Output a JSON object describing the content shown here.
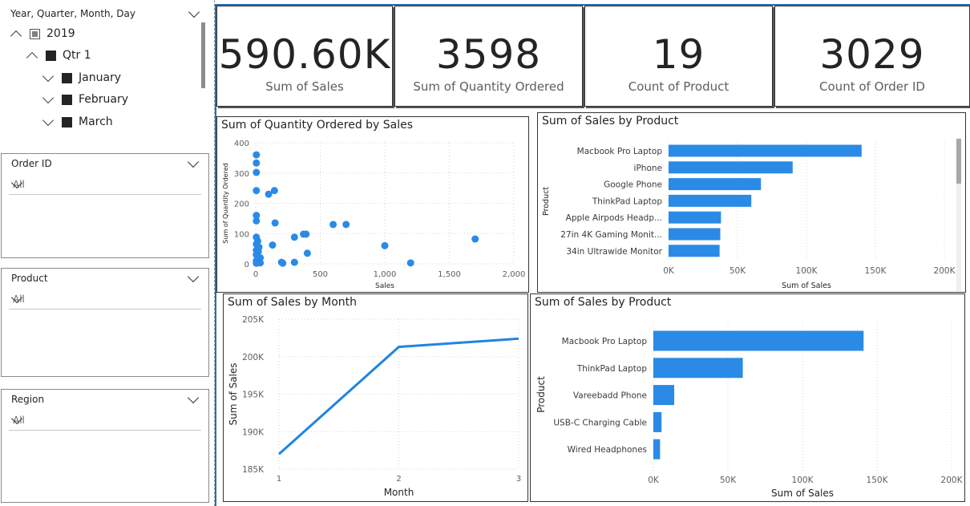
{
  "slicers": {
    "date_hierarchy": {
      "title": "Year, Quarter, Month, Day",
      "year": "2019",
      "quarter": "Qtr 1",
      "months": [
        "January",
        "February",
        "March"
      ]
    },
    "order_id": {
      "title": "Order ID",
      "value": "All"
    },
    "product": {
      "title": "Product",
      "value": "All"
    },
    "region": {
      "title": "Region",
      "value": "All"
    }
  },
  "kpis": [
    {
      "value": "590.60K",
      "label": "Sum of Sales"
    },
    {
      "value": "3598",
      "label": "Sum of Quantity Ordered"
    },
    {
      "value": "19",
      "label": "Count of Product"
    },
    {
      "value": "3029",
      "label": "Count of Order ID"
    }
  ],
  "colors": {
    "accent": "#2b8ae6",
    "line": "#1f84e3",
    "grid": "#d6d6d6"
  },
  "chart_data": [
    {
      "type": "scatter",
      "title": "Sum of Quantity Ordered by Sales",
      "xlabel": "Sales",
      "ylabel": "Sum of Quantity Ordered",
      "xlim": [
        0,
        2000
      ],
      "ylim": [
        0,
        400
      ],
      "xticks": [
        "0",
        "500",
        "1,000",
        "1,500",
        "2,000"
      ],
      "yticks": [
        "0",
        "100",
        "200",
        "300",
        "400"
      ],
      "points": [
        [
          5,
          360
        ],
        [
          5,
          333
        ],
        [
          5,
          302
        ],
        [
          5,
          242
        ],
        [
          5,
          160
        ],
        [
          5,
          142
        ],
        [
          5,
          88
        ],
        [
          5,
          65
        ],
        [
          5,
          45
        ],
        [
          5,
          30
        ],
        [
          5,
          10
        ],
        [
          5,
          2
        ],
        [
          15,
          75
        ],
        [
          20,
          40
        ],
        [
          25,
          55
        ],
        [
          20,
          22
        ],
        [
          30,
          5
        ],
        [
          35,
          20
        ],
        [
          35,
          3
        ],
        [
          100,
          230
        ],
        [
          145,
          242
        ],
        [
          150,
          135
        ],
        [
          130,
          62
        ],
        [
          200,
          5
        ],
        [
          210,
          2
        ],
        [
          300,
          5
        ],
        [
          300,
          88
        ],
        [
          370,
          98
        ],
        [
          390,
          98
        ],
        [
          400,
          35
        ],
        [
          600,
          130
        ],
        [
          700,
          130
        ],
        [
          1000,
          60
        ],
        [
          1200,
          3
        ],
        [
          1700,
          82
        ]
      ]
    },
    {
      "type": "bar",
      "orientation": "horizontal",
      "title": "Sum of Sales by Product",
      "xlabel": "Sum of Sales",
      "ylabel": "Product",
      "xlim": [
        0,
        200000
      ],
      "xticks": [
        "0K",
        "50K",
        "100K",
        "150K",
        "200K"
      ],
      "categories": [
        "Macbook Pro Laptop",
        "iPhone",
        "Google Phone",
        "ThinkPad Laptop",
        "Apple Airpods Headp...",
        "27in 4K Gaming Monit...",
        "34in Ultrawide Monitor"
      ],
      "values": [
        140000,
        90000,
        67000,
        60000,
        38000,
        37500,
        37000
      ]
    },
    {
      "type": "line",
      "title": "Sum of Sales by Month",
      "xlabel": "Month",
      "ylabel": "Sum of Sales",
      "x": [
        1,
        2,
        3
      ],
      "values": [
        187000,
        201300,
        202400
      ],
      "ylim": [
        185000,
        205000
      ],
      "xticks": [
        "1",
        "2",
        "3"
      ],
      "yticks": [
        "185K",
        "190K",
        "195K",
        "200K",
        "205K"
      ]
    },
    {
      "type": "bar",
      "orientation": "horizontal",
      "title": "Sum of Sales by Product",
      "xlabel": "Sum of Sales",
      "ylabel": "Product",
      "xlim": [
        0,
        200000
      ],
      "xticks": [
        "0K",
        "50K",
        "100K",
        "150K",
        "200K"
      ],
      "categories": [
        "Macbook Pro Laptop",
        "ThinkPad Laptop",
        "Vareebadd Phone",
        "USB-C Charging Cable",
        "Wired Headphones"
      ],
      "values": [
        141000,
        60000,
        14000,
        5500,
        4500
      ]
    }
  ]
}
